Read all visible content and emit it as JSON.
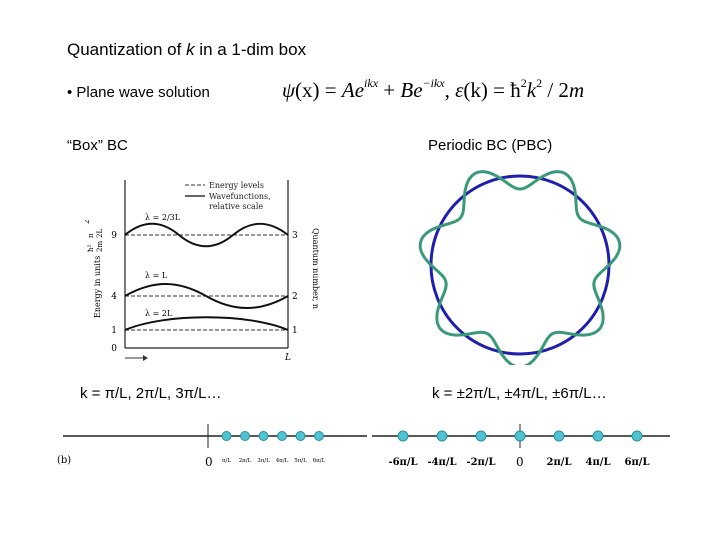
{
  "title": {
    "prefix": "Quantization of ",
    "var": "k",
    "suffix": " in a 1-dim box"
  },
  "bullet": "• Plane wave solution",
  "formula": {
    "psi": "ψ",
    "lhs": "(x) = ",
    "A": "A",
    "e1": "e",
    "exp1": "ikx",
    "plus": " + ",
    "B": "B",
    "e2": "e",
    "exp2": "−ikx",
    "sep": ", ",
    "eps": "ε",
    "k_arg": "(k) = ",
    "h": "ħ",
    "h_exp": "2",
    "k": "k",
    "k_exp": "2",
    "div": " / 2",
    "m": "m"
  },
  "labels": {
    "box_bc": "“Box” BC",
    "periodic_bc": "Periodic BC (PBC)",
    "k_box": "k = π/L, 2π/L, 3π/L…",
    "k_pbc": "k = ±2π/L, ±4π/L, ±6π/L…"
  },
  "energy_figure": {
    "legend": [
      "Energy levels",
      "Wavefunctions,",
      "relative scale"
    ],
    "y_label": "Energy in units",
    "y_prefactor_top": "ħ²",
    "y_prefactor_bot": "2m",
    "y_paren_top": "π",
    "y_paren_bot": "2L",
    "y_paren_exp": "2",
    "right_label": "Quantum number, n",
    "levels": [
      {
        "energy": "9",
        "n": "3",
        "lambda": "λ = 2/3 L"
      },
      {
        "energy": "4",
        "n": "2",
        "lambda": "λ = L"
      },
      {
        "energy": "1",
        "n": "1",
        "lambda": "λ = 2L"
      }
    ],
    "zero": "0",
    "x_end": "L",
    "lambda_1": "λ = 2L",
    "lambda_2": "λ = L",
    "lambda_3_pre": "λ = ",
    "lambda_3_num": "2",
    "lambda_3_den": "3",
    "lambda_3_post": "L"
  },
  "kaxis_box": {
    "panel": "(b)",
    "zero": "0",
    "k_values": [
      1,
      2,
      3,
      4,
      5,
      6
    ],
    "tick_labels": [
      "π/L",
      "2π/L",
      "3π/L",
      "4π/L",
      "5π/L",
      "6π/L"
    ]
  },
  "kaxis_pbc": {
    "zero": "0",
    "k_values": [
      -6,
      -4,
      -2,
      0,
      2,
      4,
      6
    ],
    "tick_labels": [
      "-6π/L",
      "-4π/L",
      "-2π/L",
      "2π/L",
      "4π/L",
      "6π/L"
    ]
  },
  "colors": {
    "circle": "#1f1fae",
    "wave": "#3a9a78",
    "dot_fill": "#4fc3d0",
    "dot_stroke": "#2a8fa0"
  }
}
